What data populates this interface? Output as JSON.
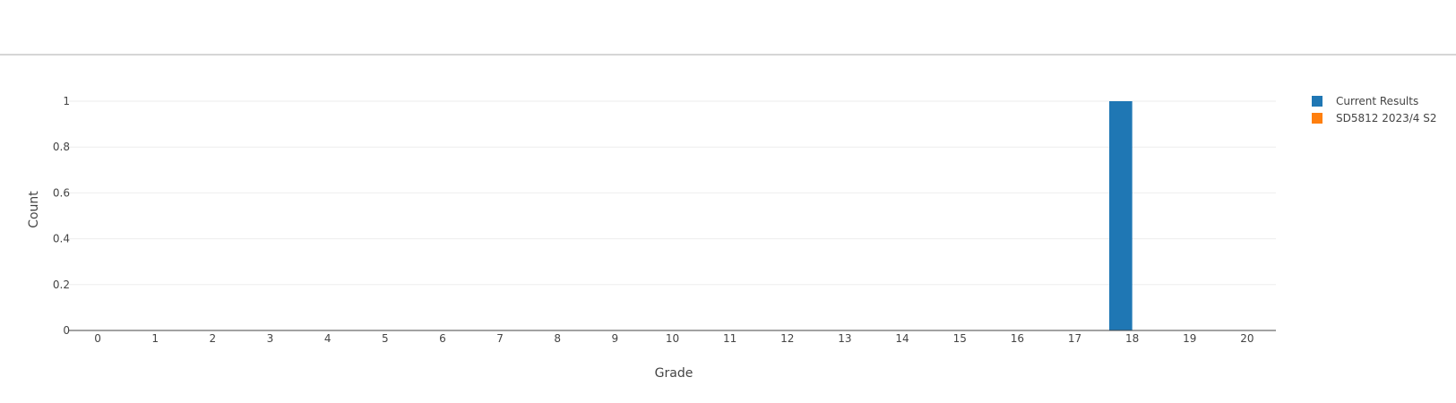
{
  "chart_data": {
    "type": "bar",
    "categories": [
      "0",
      "1",
      "2",
      "3",
      "4",
      "5",
      "6",
      "7",
      "8",
      "9",
      "10",
      "11",
      "12",
      "13",
      "14",
      "15",
      "16",
      "17",
      "18",
      "19",
      "20"
    ],
    "series": [
      {
        "name": "Current Results",
        "color": "#1f77b4",
        "values": [
          0,
          0,
          0,
          0,
          0,
          0,
          0,
          0,
          0,
          0,
          0,
          0,
          0,
          0,
          0,
          0,
          0,
          0,
          1,
          0,
          0
        ]
      },
      {
        "name": "SD5812 2023/4 S2",
        "color": "#ff7f0e",
        "values": [
          0,
          0,
          0,
          0,
          0,
          0,
          0,
          0,
          0,
          0,
          0,
          0,
          0,
          0,
          0,
          0,
          0,
          0,
          0,
          0,
          0
        ]
      }
    ],
    "xlabel": "Grade",
    "ylabel": "Count",
    "ylim": [
      0,
      1
    ],
    "yticks": [
      "0",
      "0.2",
      "0.4",
      "0.6",
      "0.8",
      "1"
    ],
    "grid": true,
    "legend_position": "top-right"
  }
}
